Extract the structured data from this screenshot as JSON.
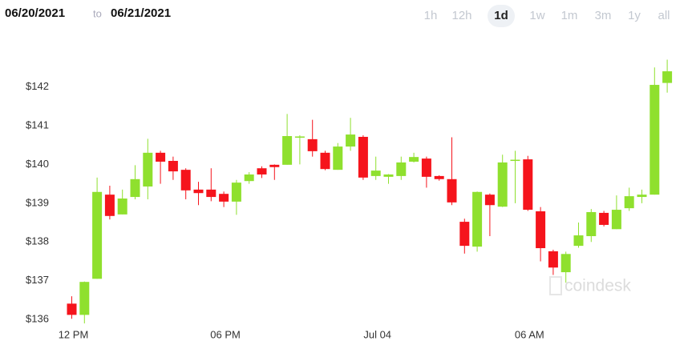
{
  "chart_data": {
    "type": "candlestick",
    "date_from": "06/20/2021",
    "date_separator": "to",
    "date_to": "06/21/2021",
    "ranges": [
      "1h",
      "12h",
      "1d",
      "1w",
      "1m",
      "3m",
      "1y",
      "all"
    ],
    "selected_range": "1d",
    "watermark": "coindesk",
    "categories": [
      "12 PM",
      null,
      null,
      null,
      null,
      null,
      null,
      null,
      null,
      null,
      null,
      null,
      "06 PM",
      null,
      null,
      null,
      null,
      null,
      null,
      null,
      null,
      null,
      null,
      null,
      "Jul 04",
      null,
      null,
      null,
      null,
      null,
      null,
      null,
      null,
      null,
      null,
      null,
      "06 AM",
      null,
      null,
      null,
      null,
      null,
      null,
      null,
      null,
      null,
      null,
      null
    ],
    "open": [
      136.41,
      136.12,
      137.05,
      139.22,
      138.71,
      139.16,
      139.43,
      140.3,
      140.09,
      139.86,
      139.35,
      139.35,
      139.24,
      139.04,
      139.57,
      139.9,
      139.99,
      139.99,
      140.7,
      140.65,
      140.3,
      139.86,
      140.46,
      140.71,
      139.7,
      139.68,
      139.7,
      140.07,
      140.15,
      139.7,
      139.62,
      138.52,
      137.88,
      139.22,
      138.91,
      140.1,
      140.13,
      138.79,
      137.76,
      137.22,
      137.9,
      138.15,
      138.75,
      138.33,
      138.87,
      139.16,
      139.22,
      142.1
    ],
    "high": [
      136.6,
      136.98,
      139.66,
      139.45,
      139.35,
      139.98,
      140.66,
      140.35,
      140.2,
      139.9,
      139.55,
      139.9,
      139.3,
      139.6,
      139.8,
      139.95,
      140.0,
      141.3,
      140.75,
      141.15,
      140.35,
      140.55,
      141.2,
      140.75,
      140.2,
      139.75,
      140.2,
      140.3,
      140.2,
      139.72,
      140.7,
      138.6,
      139.3,
      139.25,
      140.25,
      140.35,
      140.22,
      138.9,
      137.8,
      137.75,
      138.5,
      138.85,
      138.8,
      139.2,
      139.4,
      139.35,
      142.5,
      142.7
    ],
    "low": [
      136.02,
      135.9,
      137.05,
      138.58,
      138.71,
      139.1,
      139.1,
      139.5,
      139.6,
      139.1,
      138.95,
      139.05,
      138.9,
      138.7,
      139.5,
      139.65,
      139.6,
      139.99,
      140.0,
      140.2,
      139.85,
      139.86,
      140.35,
      139.6,
      139.6,
      139.5,
      139.6,
      140.05,
      139.4,
      139.58,
      138.95,
      137.7,
      137.75,
      138.15,
      138.9,
      139.0,
      138.8,
      137.5,
      137.15,
      136.95,
      137.85,
      138.0,
      138.4,
      138.33,
      138.8,
      139.0,
      139.22,
      141.85
    ],
    "close": [
      136.12,
      136.97,
      139.29,
      138.67,
      139.12,
      139.62,
      140.3,
      140.07,
      139.82,
      139.33,
      139.26,
      139.16,
      139.04,
      139.53,
      139.74,
      139.74,
      139.93,
      140.73,
      140.72,
      140.34,
      139.88,
      140.46,
      140.77,
      139.66,
      139.84,
      139.74,
      140.05,
      140.19,
      139.68,
      139.62,
      139.02,
      137.9,
      139.29,
      138.95,
      140.05,
      140.12,
      138.83,
      137.84,
      137.34,
      137.69,
      138.17,
      138.77,
      138.44,
      138.83,
      139.18,
      139.22,
      142.05,
      142.4
    ],
    "up_color": "#8fe02e",
    "down_color": "#f5141c",
    "ylim": [
      135.88,
      143.0
    ],
    "yticks": [
      {
        "value": 136,
        "label": "$136"
      },
      {
        "value": 137,
        "label": "$137"
      },
      {
        "value": 138,
        "label": "$138"
      },
      {
        "value": 139,
        "label": "$139"
      },
      {
        "value": 140,
        "label": "$140"
      },
      {
        "value": 141,
        "label": "$141"
      },
      {
        "value": 142,
        "label": "$142"
      }
    ],
    "grid": false
  }
}
